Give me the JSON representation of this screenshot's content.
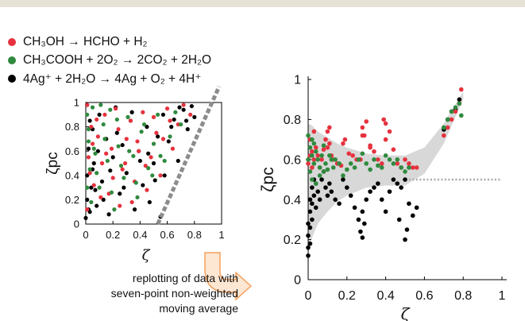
{
  "legend": {
    "items": [
      {
        "label": "CH₃OH → HCHO + H₂",
        "color": "#e6323e",
        "icon": "red-dot-icon"
      },
      {
        "label": "CH₃COOH + 2O₂ → 2CO₂ + 2H₂O",
        "color": "#2f8a3e",
        "icon": "green-dot-icon"
      },
      {
        "label": "4Ag⁺ + 2H₂O → 4Ag + O₂ + 4H⁺",
        "color": "#000000",
        "icon": "black-dot-icon"
      }
    ]
  },
  "annotation": {
    "lines": [
      "replotting of data with",
      "seven-point non-weighted",
      "moving average"
    ],
    "arrow_color": "#f5a05c",
    "arrow_icon": "curved-arrow-icon"
  },
  "chart_data": [
    {
      "type": "scatter",
      "title": "",
      "xlabel": "ζ",
      "ylabel": "ζpc",
      "xlim": [
        0,
        1
      ],
      "ylim": [
        0,
        1
      ],
      "x_ticks": [
        "0",
        "0.2",
        "0.4",
        "0.6",
        "0.8",
        "1"
      ],
      "y_ticks": [
        "0",
        "0.2",
        "0.4",
        "0.6",
        "0.8",
        "1"
      ],
      "grid": false,
      "reference_line": {
        "style": "dashed",
        "color": "#8c8c8c",
        "x": [
          0.53,
          0.9
        ],
        "y": [
          0,
          1
        ]
      },
      "series": [
        {
          "color": "#e6323e",
          "x": [
            0.01,
            0.02,
            0.04,
            0.06,
            0.09,
            0.12,
            0.14,
            0.17,
            0.19,
            0.22,
            0.25,
            0.27,
            0.3,
            0.33,
            0.36,
            0.39,
            0.42,
            0.45,
            0.48,
            0.52,
            0.55,
            0.6,
            0.64,
            0.68,
            0.72,
            0.77,
            0.01,
            0.03,
            0.05,
            0.08,
            0.11,
            0.15,
            0.2,
            0.24,
            0.29,
            0.34,
            0.38,
            0.44,
            0.5,
            0.57,
            0.62
          ],
          "y": [
            0.98,
            0.55,
            0.8,
            0.32,
            0.72,
            0.5,
            0.9,
            0.25,
            0.62,
            0.95,
            0.15,
            0.45,
            0.7,
            0.85,
            0.35,
            0.6,
            0.92,
            0.28,
            0.55,
            0.75,
            0.4,
            0.95,
            0.62,
            0.82,
            0.98,
            0.9,
            0.12,
            0.42,
            0.66,
            0.86,
            0.22,
            0.58,
            0.38,
            0.78,
            0.5,
            0.18,
            0.68,
            0.48,
            0.88,
            0.7,
            0.85
          ]
        },
        {
          "color": "#2f8a3e",
          "x": [
            0.01,
            0.02,
            0.03,
            0.05,
            0.07,
            0.1,
            0.13,
            0.16,
            0.18,
            0.21,
            0.24,
            0.28,
            0.31,
            0.35,
            0.38,
            0.41,
            0.46,
            0.5,
            0.53,
            0.58,
            0.62,
            0.01,
            0.02,
            0.04,
            0.06,
            0.08,
            0.11,
            0.14,
            0.19,
            0.23,
            0.26,
            0.32,
            0.37,
            0.43,
            0.49,
            0.55,
            0.66,
            0.7
          ],
          "y": [
            0.9,
            0.68,
            0.45,
            0.96,
            0.58,
            0.3,
            0.82,
            0.52,
            0.94,
            0.12,
            0.64,
            0.38,
            0.88,
            0.56,
            0.22,
            0.76,
            0.46,
            0.66,
            0.9,
            0.52,
            0.72,
            0.3,
            0.78,
            0.18,
            0.62,
            0.42,
            0.98,
            0.7,
            0.26,
            0.86,
            0.48,
            0.6,
            0.34,
            0.82,
            0.4,
            0.56,
            0.92,
            0.82
          ]
        },
        {
          "color": "#000000",
          "x": [
            0.0,
            0.01,
            0.01,
            0.02,
            0.03,
            0.04,
            0.05,
            0.06,
            0.08,
            0.1,
            0.12,
            0.15,
            0.17,
            0.2,
            0.22,
            0.25,
            0.27,
            0.3,
            0.33,
            0.36,
            0.39,
            0.42,
            0.45,
            0.47,
            0.5,
            0.53,
            0.55,
            0.58,
            0.61,
            0.65,
            0.68,
            0.72,
            0.75,
            0.78,
            0.8,
            0.01,
            0.02,
            0.03,
            0.05,
            0.07,
            0.09,
            0.13,
            0.18,
            0.23,
            0.28,
            0.34,
            0.4,
            0.46,
            0.51,
            0.57,
            0.63,
            0.69,
            0.74
          ],
          "y": [
            0.05,
            0.2,
            0.4,
            0.62,
            0.1,
            0.3,
            0.78,
            0.5,
            0.15,
            0.9,
            0.35,
            0.7,
            0.08,
            0.55,
            0.96,
            0.25,
            0.65,
            0.42,
            0.85,
            0.12,
            0.6,
            0.32,
            0.8,
            0.18,
            0.5,
            0.72,
            0.06,
            0.4,
            0.68,
            0.86,
            0.52,
            0.94,
            0.78,
            0.97,
            0.88,
            0.98,
            0.12,
            0.85,
            0.45,
            0.28,
            0.6,
            0.2,
            0.44,
            0.75,
            0.3,
            0.92,
            0.52,
            0.58,
            0.36,
            0.9,
            0.8,
            0.96,
            0.85
          ]
        }
      ]
    },
    {
      "type": "scatter",
      "title": "",
      "xlabel": "ζ",
      "ylabel": "ζpc",
      "xlim": [
        0,
        1
      ],
      "ylim": [
        0,
        1
      ],
      "x_ticks": [
        "0",
        "0.2",
        "0.4",
        "0.6",
        "0.8",
        "1"
      ],
      "y_ticks": [
        "0",
        "0.2",
        "0.4",
        "0.6",
        "0.8",
        "1"
      ],
      "grid": false,
      "reference_line": {
        "style": "dotted",
        "color": "#a8a8a8",
        "x": [
          0.52,
          1.0
        ],
        "y": [
          0.5,
          0.5
        ]
      },
      "band": {
        "color": "#d8d8d8",
        "x": [
          0.0,
          0.02,
          0.05,
          0.1,
          0.15,
          0.2,
          0.3,
          0.4,
          0.5,
          0.6,
          0.7,
          0.8
        ],
        "upper": [
          0.78,
          0.77,
          0.74,
          0.71,
          0.68,
          0.66,
          0.63,
          0.62,
          0.62,
          0.66,
          0.78,
          0.94
        ],
        "lower": [
          0.16,
          0.21,
          0.28,
          0.34,
          0.39,
          0.42,
          0.46,
          0.47,
          0.47,
          0.53,
          0.68,
          0.9
        ]
      },
      "series": [
        {
          "color": "#e6323e",
          "x": [
            0.0,
            0.01,
            0.01,
            0.02,
            0.02,
            0.03,
            0.03,
            0.04,
            0.05,
            0.06,
            0.07,
            0.08,
            0.09,
            0.1,
            0.11,
            0.12,
            0.13,
            0.15,
            0.17,
            0.19,
            0.21,
            0.23,
            0.25,
            0.27,
            0.28,
            0.3,
            0.32,
            0.34,
            0.36,
            0.38,
            0.4,
            0.42,
            0.44,
            0.46,
            0.48,
            0.5,
            0.52,
            0.54,
            0.56,
            0.7,
            0.72,
            0.74,
            0.76,
            0.78,
            0.79,
            0.1,
            0.11,
            0.28,
            0.29,
            0.39,
            0.4,
            0.18,
            0.32
          ],
          "y": [
            0.58,
            0.62,
            0.7,
            0.56,
            0.64,
            0.74,
            0.6,
            0.66,
            0.62,
            0.56,
            0.6,
            0.65,
            0.7,
            0.66,
            0.76,
            0.62,
            0.6,
            0.58,
            0.57,
            0.7,
            0.63,
            0.62,
            0.6,
            0.6,
            0.72,
            0.79,
            0.66,
            0.64,
            0.6,
            0.58,
            0.78,
            0.74,
            0.65,
            0.58,
            0.56,
            0.6,
            0.58,
            0.56,
            0.56,
            0.72,
            0.76,
            0.8,
            0.84,
            0.88,
            0.95,
            0.74,
            0.68,
            0.76,
            0.72,
            0.8,
            0.7,
            0.68,
            0.67
          ]
        },
        {
          "color": "#2f8a3e",
          "x": [
            0.0,
            0.01,
            0.01,
            0.02,
            0.02,
            0.03,
            0.03,
            0.04,
            0.05,
            0.06,
            0.07,
            0.08,
            0.09,
            0.1,
            0.11,
            0.12,
            0.13,
            0.14,
            0.16,
            0.18,
            0.2,
            0.22,
            0.24,
            0.26,
            0.28,
            0.3,
            0.32,
            0.34,
            0.36,
            0.38,
            0.4,
            0.42,
            0.44,
            0.46,
            0.48,
            0.5,
            0.52,
            0.7,
            0.72,
            0.74,
            0.76,
            0.78,
            0.79,
            0.0,
            0.02,
            0.04,
            0.06,
            0.08
          ],
          "y": [
            0.6,
            0.66,
            0.54,
            0.7,
            0.62,
            0.58,
            0.68,
            0.64,
            0.6,
            0.56,
            0.62,
            0.67,
            0.58,
            0.55,
            0.62,
            0.6,
            0.56,
            0.6,
            0.58,
            0.52,
            0.55,
            0.58,
            0.56,
            0.6,
            0.63,
            0.58,
            0.55,
            0.6,
            0.57,
            0.56,
            0.62,
            0.6,
            0.58,
            0.6,
            0.56,
            0.54,
            0.56,
            0.76,
            0.8,
            0.84,
            0.86,
            0.88,
            0.82,
            0.72,
            0.5,
            0.48,
            0.52,
            0.54
          ]
        },
        {
          "color": "#000000",
          "x": [
            0.0,
            0.0,
            0.0,
            0.0,
            0.01,
            0.01,
            0.01,
            0.01,
            0.02,
            0.02,
            0.02,
            0.03,
            0.03,
            0.04,
            0.04,
            0.05,
            0.06,
            0.07,
            0.08,
            0.09,
            0.1,
            0.11,
            0.12,
            0.14,
            0.16,
            0.18,
            0.2,
            0.22,
            0.24,
            0.26,
            0.27,
            0.28,
            0.3,
            0.32,
            0.34,
            0.36,
            0.38,
            0.4,
            0.42,
            0.44,
            0.46,
            0.48,
            0.5,
            0.52,
            0.54,
            0.56,
            0.7,
            0.72,
            0.74,
            0.76,
            0.78,
            0.28,
            0.29,
            0.47,
            0.5,
            0.51
          ],
          "y": [
            0.12,
            0.16,
            0.22,
            0.28,
            0.18,
            0.26,
            0.34,
            0.4,
            0.3,
            0.38,
            0.46,
            0.42,
            0.5,
            0.36,
            0.48,
            0.44,
            0.4,
            0.5,
            0.54,
            0.46,
            0.42,
            0.48,
            0.44,
            0.4,
            0.38,
            0.5,
            0.46,
            0.42,
            0.36,
            0.3,
            0.24,
            0.21,
            0.4,
            0.44,
            0.46,
            0.48,
            0.4,
            0.34,
            0.44,
            0.5,
            0.48,
            0.46,
            0.5,
            0.38,
            0.32,
            0.36,
            0.75,
            0.8,
            0.84,
            0.85,
            0.9,
            0.34,
            0.28,
            0.3,
            0.2,
            0.25
          ]
        }
      ]
    }
  ]
}
